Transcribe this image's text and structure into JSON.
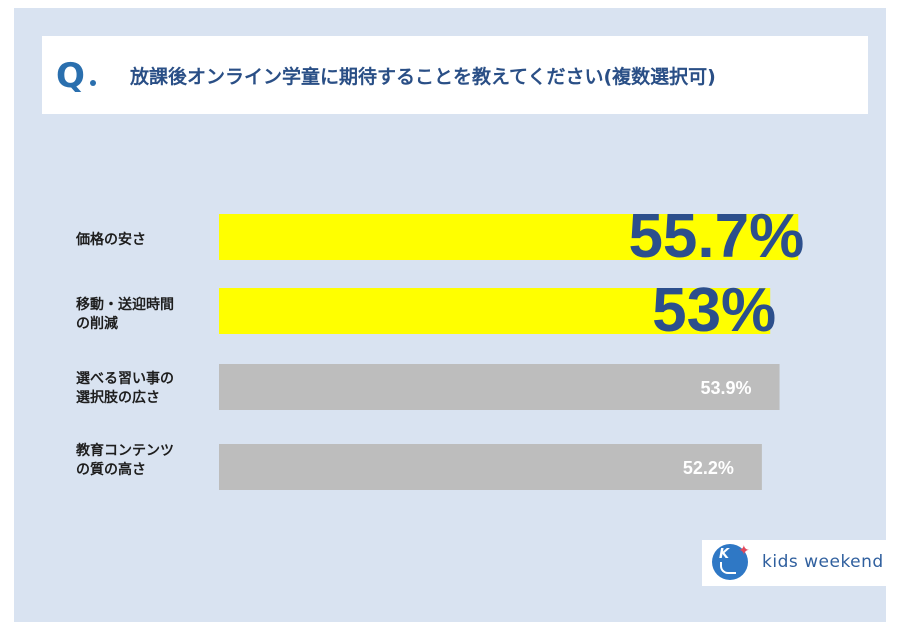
{
  "question": {
    "mark": "Q",
    "text": "放課後オンライン学童に期待することを教えてください(複数選択可)"
  },
  "chart_data": {
    "type": "bar",
    "orientation": "horizontal",
    "categories": [
      "価格の安さ",
      "移動・送迎時間の削減",
      "選べる習い事の選択肢の広さ",
      "教育コンテンツの質の高さ"
    ],
    "category_lines": [
      [
        "価格の安さ"
      ],
      [
        "移動・送迎時間",
        "の削減"
      ],
      [
        "選べる習い事の",
        "選択肢の広さ"
      ],
      [
        "教育コンテンツ",
        "の質の高さ"
      ]
    ],
    "values": [
      55.7,
      53,
      53.9,
      52.2
    ],
    "value_labels": [
      "55.7%",
      "53%",
      "53.9%",
      "52.2%"
    ],
    "highlighted": [
      true,
      true,
      false,
      false
    ],
    "unit": "%",
    "xlim": [
      0,
      60
    ],
    "colors": {
      "highlight_bar": "#ffff00",
      "normal_bar": "#bdbdbd",
      "highlight_label": "#2c4f8c",
      "normal_label": "#ffffff"
    }
  },
  "logo": {
    "text": "kids weekend",
    "icon": "kids-weekend-logo-icon",
    "letter": "K",
    "star": "✦"
  }
}
